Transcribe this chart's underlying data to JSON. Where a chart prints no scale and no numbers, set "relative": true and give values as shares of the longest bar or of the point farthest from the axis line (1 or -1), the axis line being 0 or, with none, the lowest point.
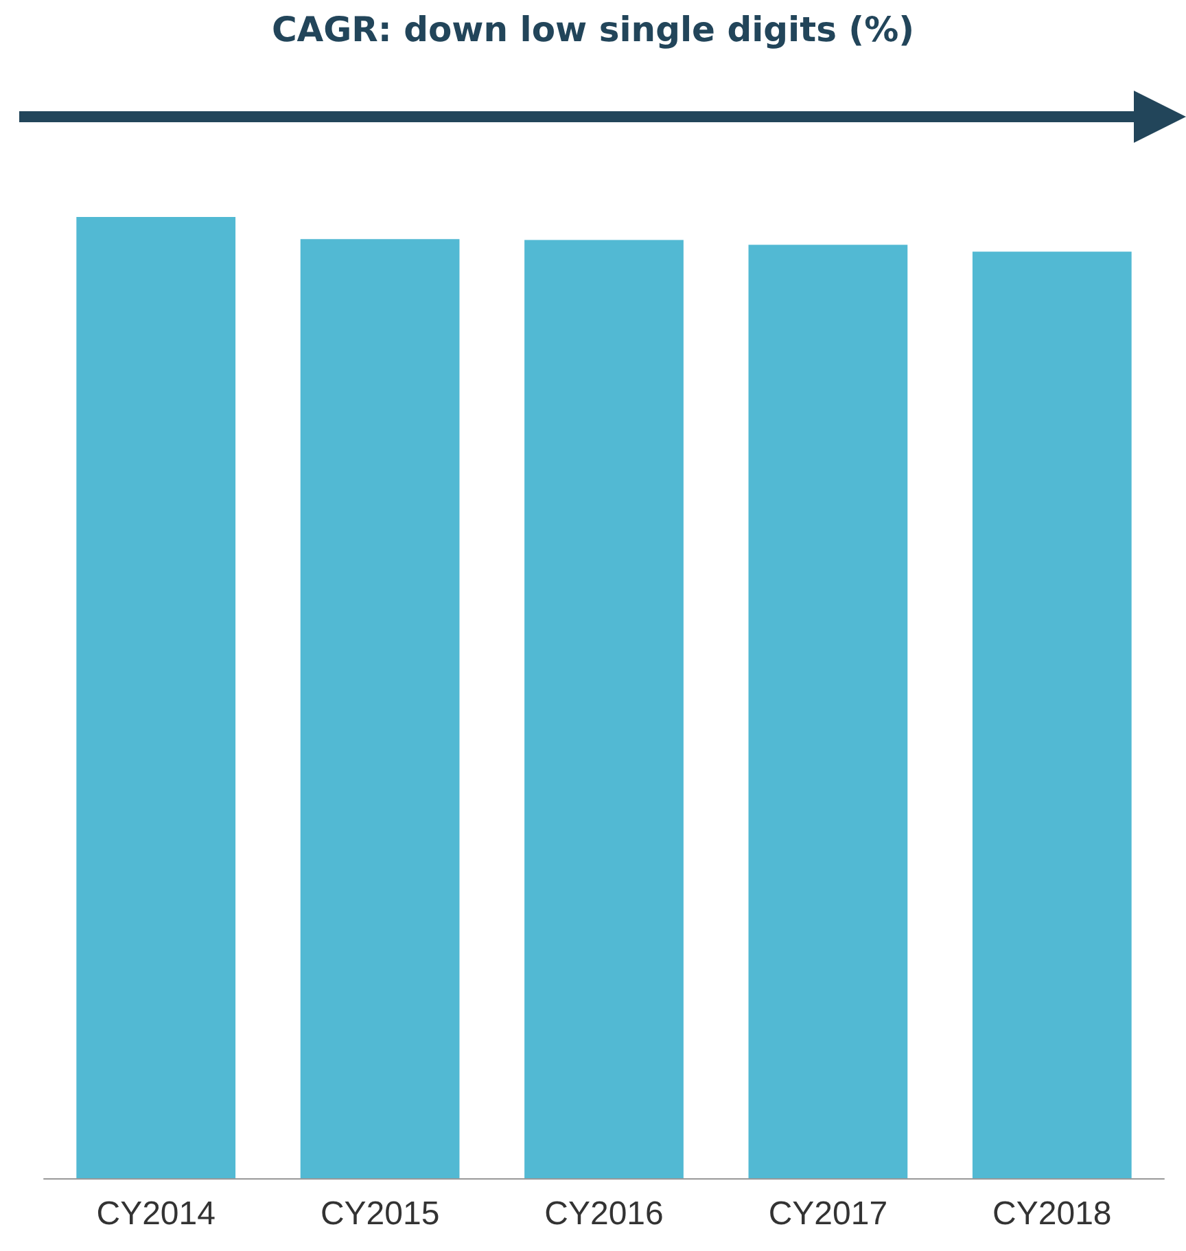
{
  "chart_data": {
    "type": "bar",
    "title": "CAGR: down low single digits (%)",
    "relative": true,
    "categories": [
      "CY2014",
      "CY2015",
      "CY2016",
      "CY2017",
      "CY2018"
    ],
    "series": [
      {
        "color": "#52b9d3",
        "values": [
          1,
          0.977,
          0.976,
          0.971,
          0.964
        ]
      }
    ]
  }
}
